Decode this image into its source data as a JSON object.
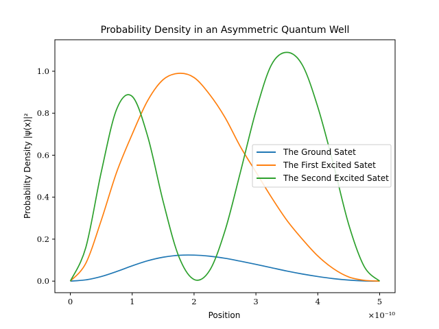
{
  "chart_data": {
    "type": "line",
    "title": "Probability Density in an Asymmetric Quantum Well",
    "xlabel": "Position",
    "ylabel": "Probability Density |ψ(x)|²",
    "x_offset_label": "×10⁻¹⁰",
    "xlim": [
      -0.25,
      5.25
    ],
    "ylim": [
      -0.055,
      1.15
    ],
    "x_ticks": [
      0,
      1,
      2,
      3,
      4,
      5
    ],
    "x_tick_labels": [
      "0",
      "1",
      "2",
      "3",
      "4",
      "5"
    ],
    "y_ticks": [
      0.0,
      0.2,
      0.4,
      0.6,
      0.8,
      1.0
    ],
    "y_tick_labels": [
      "0.0",
      "0.2",
      "0.4",
      "0.6",
      "0.8",
      "1.0"
    ],
    "grid": false,
    "legend_position": "center-right",
    "x": [
      0,
      0.25,
      0.5,
      0.75,
      1.0,
      1.25,
      1.5,
      1.75,
      2.0,
      2.25,
      2.5,
      2.75,
      3.0,
      3.25,
      3.5,
      3.75,
      4.0,
      4.25,
      4.5,
      4.75,
      5.0
    ],
    "series": [
      {
        "name": "The Ground Satet",
        "color": "#1f77b4",
        "values": [
          0.0,
          0.006,
          0.022,
          0.046,
          0.073,
          0.097,
          0.114,
          0.123,
          0.124,
          0.119,
          0.109,
          0.095,
          0.08,
          0.064,
          0.048,
          0.034,
          0.022,
          0.012,
          0.005,
          0.001,
          0.0
        ]
      },
      {
        "name": "The First Excited Satet",
        "color": "#ff7f0e",
        "values": [
          0.0,
          0.085,
          0.29,
          0.52,
          0.7,
          0.86,
          0.96,
          0.99,
          0.97,
          0.89,
          0.78,
          0.64,
          0.52,
          0.4,
          0.29,
          0.2,
          0.12,
          0.06,
          0.02,
          0.004,
          0.0
        ]
      },
      {
        "name": "The Second Excited Satet",
        "color": "#2ca02c",
        "values": [
          0.0,
          0.16,
          0.52,
          0.82,
          0.88,
          0.69,
          0.38,
          0.12,
          0.008,
          0.05,
          0.24,
          0.52,
          0.81,
          1.03,
          1.09,
          1.03,
          0.83,
          0.56,
          0.27,
          0.07,
          0.0
        ]
      }
    ]
  }
}
